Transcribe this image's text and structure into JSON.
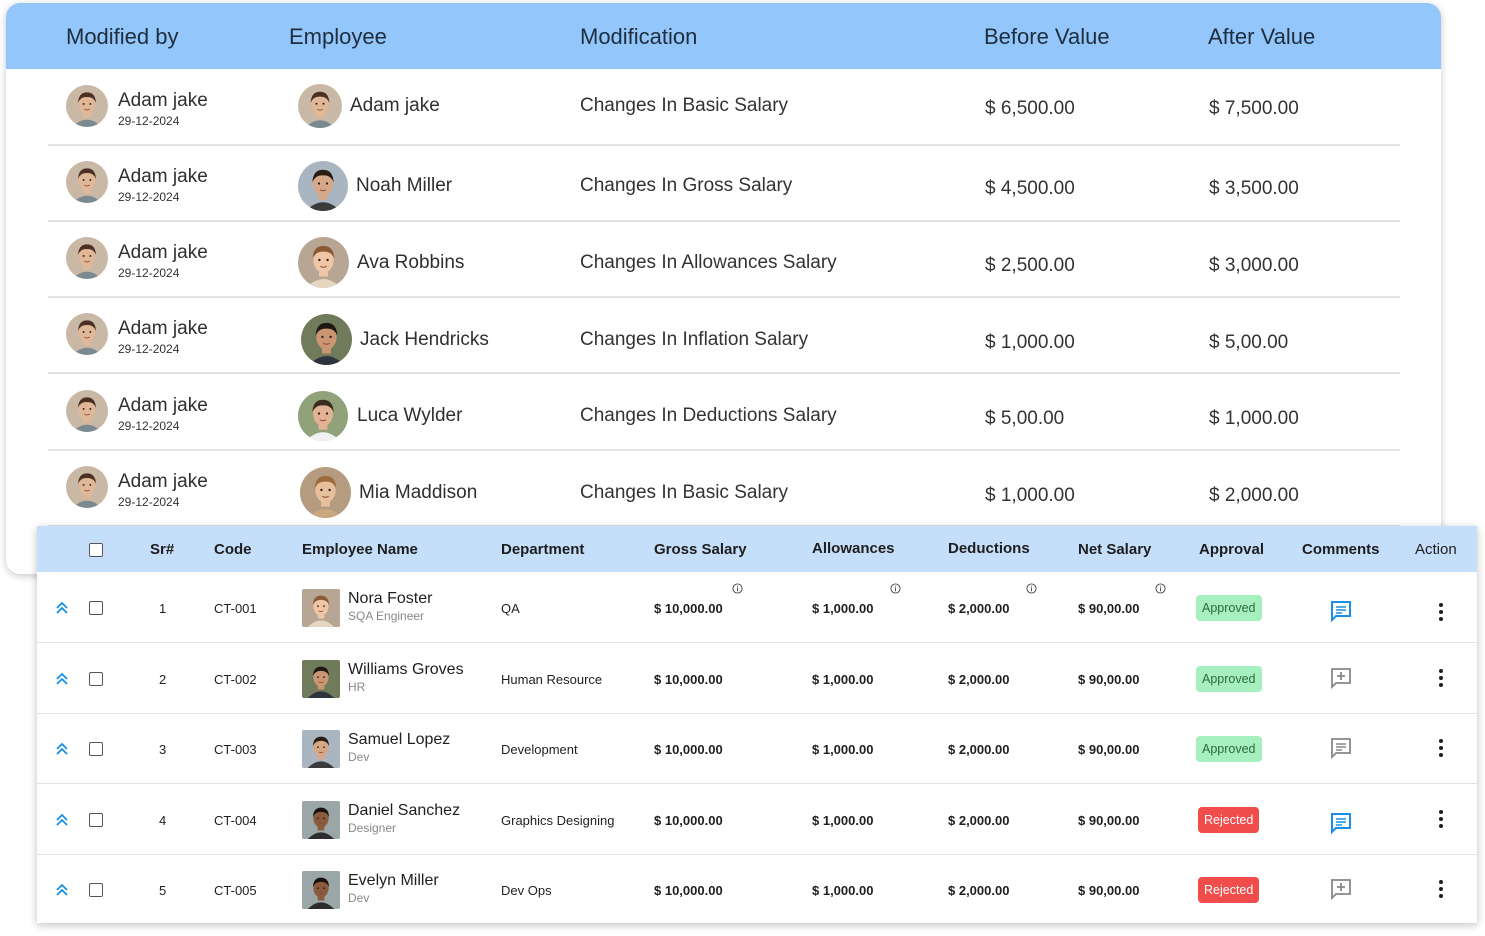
{
  "log_table": {
    "headers": {
      "modified_by": "Modified by",
      "employee": "Employee",
      "modification": "Modification",
      "before_value": "Before Value",
      "after_value": "After Value"
    },
    "rows": [
      {
        "modified_by": "Adam jake",
        "date": "29-12-2024",
        "employee": "Adam jake",
        "modification": "Changes In Basic Salary",
        "before": "$ 6,500.00",
        "after": "$ 7,500.00"
      },
      {
        "modified_by": "Adam jake",
        "date": "29-12-2024",
        "employee": "Noah Miller",
        "modification": "Changes In Gross Salary",
        "before": "$ 4,500.00",
        "after": "$ 3,500.00"
      },
      {
        "modified_by": "Adam jake",
        "date": "29-12-2024",
        "employee": "Ava Robbins",
        "modification": "Changes In Allowances Salary",
        "before": "$ 2,500.00",
        "after": "$ 3,000.00"
      },
      {
        "modified_by": "Adam jake",
        "date": "29-12-2024",
        "employee": "Jack Hendricks",
        "modification": "Changes In Inflation Salary",
        "before": "$ 1,000.00",
        "after": "$ 5,00.00"
      },
      {
        "modified_by": "Adam jake",
        "date": "29-12-2024",
        "employee": "Luca Wylder",
        "modification": "Changes In Deductions Salary",
        "before": "$ 5,00.00",
        "after": "$ 1,000.00"
      },
      {
        "modified_by": "Adam jake",
        "date": "29-12-2024",
        "employee": "Mia Maddison",
        "modification": "Changes In Basic Salary",
        "before": "$ 1,000.00",
        "after": "$ 2,000.00"
      }
    ]
  },
  "payroll_table": {
    "headers": {
      "sr": "Sr#",
      "code": "Code",
      "employee_name": "Employee Name",
      "department": "Department",
      "gross_salary": "Gross Salary",
      "allowances": "Allowances",
      "deductions": "Deductions",
      "net_salary": "Net Salary",
      "approval": "Approval",
      "comments": "Comments",
      "action": "Action"
    },
    "rows": [
      {
        "sr": "1",
        "code": "CT-001",
        "name": "Nora Foster",
        "role": "SQA Engineer",
        "department": "QA",
        "gross": "$ 10,000.00",
        "allowances": "$ 1,000.00",
        "deductions": "$ 2,000.00",
        "net": "$ 90,00.00",
        "approval": "Approved",
        "comment_icon": "comment-filled-icon"
      },
      {
        "sr": "2",
        "code": "CT-002",
        "name": "Williams Groves",
        "role": "HR",
        "department": "Human Resource",
        "gross": "$ 10,000.00",
        "allowances": "$ 1,000.00",
        "deductions": "$ 2,000.00",
        "net": "$ 90,00.00",
        "approval": "Approved",
        "comment_icon": "comment-add-icon"
      },
      {
        "sr": "3",
        "code": "CT-003",
        "name": "Samuel Lopez",
        "role": "Dev",
        "department": "Development",
        "gross": "$ 10,000.00",
        "allowances": "$ 1,000.00",
        "deductions": "$ 2,000.00",
        "net": "$ 90,00.00",
        "approval": "Approved",
        "comment_icon": "comment-outline-icon"
      },
      {
        "sr": "4",
        "code": "CT-004",
        "name": "Daniel Sanchez",
        "role": "Designer",
        "department": "Graphics Designing",
        "gross": "$ 10,000.00",
        "allowances": "$ 1,000.00",
        "deductions": "$ 2,000.00",
        "net": "$ 90,00.00",
        "approval": "Rejected",
        "comment_icon": "comment-filled-icon"
      },
      {
        "sr": "5",
        "code": "CT-005",
        "name": "Evelyn Miller",
        "role": "Dev",
        "department": "Dev Ops",
        "gross": "$ 10,000.00",
        "allowances": "$ 1,000.00",
        "deductions": "$ 2,000.00",
        "net": "$ 90,00.00",
        "approval": "Rejected",
        "comment_icon": "comment-add-icon"
      }
    ]
  },
  "colors": {
    "log_header": "#93c7fb",
    "payroll_header": "#c5defa",
    "approved_bg": "#a6f0bf",
    "rejected_bg": "#f04c4c",
    "comment_active": "#1a8fe3"
  }
}
